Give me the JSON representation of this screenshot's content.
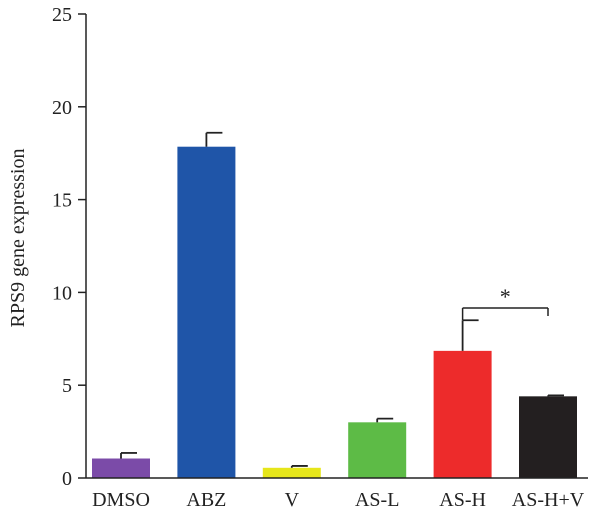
{
  "chart_data": {
    "type": "bar",
    "title": "",
    "xlabel": "",
    "ylabel": "RPS9 gene expression",
    "ylim": [
      0,
      25
    ],
    "yticks": [
      0,
      5,
      10,
      15,
      20,
      25
    ],
    "grid": false,
    "legend": "none",
    "categories": [
      "DMSO",
      "ABZ",
      "V",
      "AS-L",
      "AS-H",
      "AS-H+V"
    ],
    "values": [
      1.05,
      17.85,
      0.55,
      3.0,
      6.85,
      4.4
    ],
    "errors": [
      0.3,
      0.75,
      0.1,
      0.2,
      1.65,
      0.05
    ],
    "colors": [
      "#7B4BA8",
      "#1F55A8",
      "#E6E61A",
      "#5DBB46",
      "#ED2B2B",
      "#231F20"
    ],
    "annotations": [
      {
        "text": "*",
        "from": "AS-H",
        "to": "AS-H+V"
      }
    ]
  }
}
